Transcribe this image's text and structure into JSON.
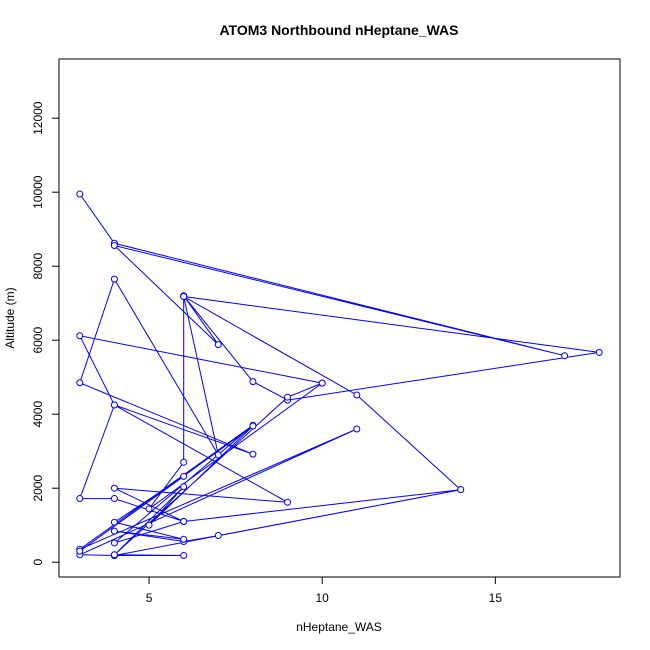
{
  "chart_data": {
    "type": "line",
    "title": "ATOM3 Northbound nHeptane_WAS",
    "xlabel": "nHeptane_WAS",
    "ylabel": "Altitude (m)",
    "xlim": [
      2.4,
      18.6
    ],
    "ylim": [
      -400,
      13600
    ],
    "x_ticks": [
      5,
      10,
      15
    ],
    "y_ticks": [
      0,
      2000,
      4000,
      6000,
      8000,
      10000,
      12000
    ],
    "grid": false,
    "color": "#0000ff",
    "series": [
      {
        "marker": "open-circle",
        "points": [
          [
            3,
            9950
          ],
          [
            4,
            8620
          ],
          [
            17,
            5580
          ],
          [
            4,
            8560
          ],
          [
            7,
            5880
          ],
          [
            6,
            7200
          ],
          [
            8,
            4880
          ],
          [
            9,
            4380
          ],
          [
            18,
            5670
          ],
          [
            6,
            7180
          ],
          [
            7,
            2900
          ],
          [
            4,
            7650
          ],
          [
            3,
            4850
          ],
          [
            8,
            2920
          ],
          [
            4,
            4250
          ],
          [
            9,
            1620
          ],
          [
            4,
            2000
          ],
          [
            6,
            1100
          ],
          [
            4,
            520
          ],
          [
            8,
            3700
          ],
          [
            3,
            350
          ],
          [
            11,
            3600
          ],
          [
            3,
            200
          ],
          [
            4,
            180
          ],
          [
            4,
            200
          ],
          [
            6,
            180
          ],
          [
            4,
            180
          ],
          [
            14,
            1960
          ],
          [
            7,
            720
          ],
          [
            6,
            560
          ],
          [
            4,
            840
          ],
          [
            6,
            620
          ],
          [
            4,
            1080
          ],
          [
            6,
            2320
          ],
          [
            3,
            300
          ],
          [
            8,
            3680
          ],
          [
            5,
            1000
          ],
          [
            6,
            2040
          ],
          [
            4,
            200
          ],
          [
            9,
            4460
          ],
          [
            10,
            4840
          ],
          [
            5,
            1440
          ],
          [
            6,
            2700
          ],
          [
            6,
            7180
          ],
          [
            11,
            4520
          ],
          [
            14,
            1960
          ],
          [
            6,
            1100
          ],
          [
            4,
            1720
          ],
          [
            3,
            1720
          ],
          [
            4,
            4250
          ],
          [
            3,
            6120
          ],
          [
            10,
            4840
          ]
        ]
      }
    ]
  }
}
